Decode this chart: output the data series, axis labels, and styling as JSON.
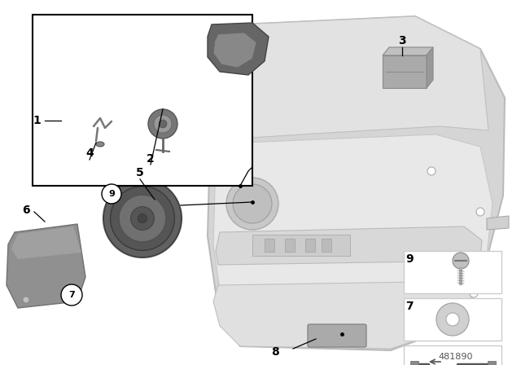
{
  "bg_color": "#ffffff",
  "part_number": "481890",
  "line_color": "#000000",
  "label_fontsize": 10,
  "door_color": "#dcdcdc",
  "door_edge": "#bbbbbb",
  "door_inner": "#e8e8e8",
  "part3_color": "#aaaaaa",
  "part8_color": "#aaaaaa",
  "speaker_outer": "#888888",
  "grille_color": "#888888",
  "box_color": "#f0f0f0",
  "tweeter_color": "#666666"
}
